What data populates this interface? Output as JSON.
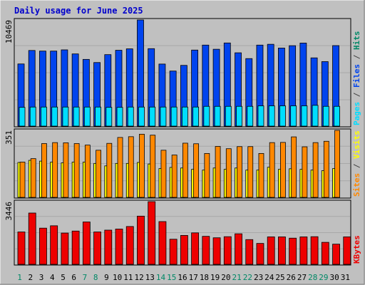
{
  "chart_data": {
    "type": "bar",
    "title": "Daily usage for June 2025",
    "days": [
      "1",
      "2",
      "3",
      "4",
      "5",
      "6",
      "7",
      "8",
      "9",
      "10",
      "11",
      "12",
      "13",
      "14",
      "15",
      "16",
      "17",
      "18",
      "19",
      "20",
      "21",
      "22",
      "23",
      "24",
      "25",
      "26",
      "27",
      "28",
      "29",
      "30",
      "31"
    ],
    "weekend_days": [
      "1",
      "7",
      "8",
      "14",
      "15",
      "21",
      "22",
      "28",
      "29"
    ],
    "panels": [
      {
        "id": "hits-files-pages",
        "ymax": 10469,
        "ymax_label": "10469",
        "side_labels": [
          {
            "text": "Pages",
            "color": "#00ddff"
          },
          {
            "text": " / ",
            "color": "#444444"
          },
          {
            "text": "Files",
            "color": "#0044ee"
          },
          {
            "text": " / ",
            "color": "#444444"
          },
          {
            "text": "Hits",
            "color": "#008866"
          }
        ],
        "series": [
          {
            "key": "hits",
            "color": "#008866",
            "values": [
              6130,
              7460,
              7400,
              7400,
              7520,
              7120,
              6580,
              6270,
              7050,
              7480,
              7620,
              10469,
              7640,
              6120,
              5430,
              5990,
              7500,
              7990,
              7580,
              8200,
              7230,
              6660,
              7990,
              8070,
              7700,
              7930,
              8190,
              6730,
              6360,
              7940
            ]
          },
          {
            "key": "files",
            "color": "#0044ee",
            "values": [
              6130,
              7460,
              7400,
              7400,
              7520,
              7120,
              6580,
              6270,
              7050,
              7480,
              7620,
              10469,
              7640,
              6120,
              5430,
              5990,
              7500,
              7990,
              7580,
              8200,
              7230,
              6660,
              7990,
              8070,
              7700,
              7930,
              8190,
              6730,
              6360,
              7940
            ]
          },
          {
            "key": "pages",
            "color": "#00ddff",
            "values": [
              1850,
              1880,
              1880,
              1880,
              1880,
              1880,
              1880,
              1880,
              1850,
              1850,
              1880,
              1880,
              1880,
              1880,
              1880,
              1880,
              1880,
              1950,
              1950,
              1950,
              1950,
              1950,
              2000,
              2000,
              2000,
              2000,
              2000,
              2050,
              1950,
              1950
            ]
          }
        ]
      },
      {
        "id": "visits-sites",
        "ymax": 351,
        "ymax_label": "351",
        "side_labels": [
          {
            "text": "Sites",
            "color": "#ff8800"
          },
          {
            "text": " / ",
            "color": "#444444"
          },
          {
            "text": "Visits",
            "color": "#ffff00"
          }
        ],
        "series": [
          {
            "key": "visits",
            "color": "#ffff00",
            "values": [
              183,
              194,
              190,
              185,
              181,
              185,
              185,
              178,
              165,
              178,
              178,
              183,
              175,
              151,
              157,
              154,
              147,
              143,
              154,
              147,
              154,
              143,
              143,
              158,
              147,
              150,
              147,
              143,
              140,
              151
            ]
          },
          {
            "key": "sites",
            "color": "#ff8800",
            "values": [
              185,
              203,
              282,
              287,
              286,
              282,
              274,
              247,
              283,
              314,
              318,
              331,
              326,
              247,
              222,
              284,
              281,
              230,
              267,
              255,
              266,
              266,
              230,
              287,
              288,
              317,
              265,
              287,
              294,
              351
            ]
          }
        ]
      },
      {
        "id": "kbytes",
        "ymax": 3446,
        "ymax_label": "3446",
        "side_labels": [
          {
            "text": "KBytes",
            "color": "#ee0000"
          }
        ],
        "series": [
          {
            "key": "kbytes",
            "color": "#ee0000",
            "values": [
              1780,
              2820,
              1990,
              2120,
              1720,
              1830,
              2330,
              1780,
              1880,
              1940,
              2080,
              2650,
              3446,
              2350,
              1380,
              1590,
              1730,
              1540,
              1460,
              1520,
              1680,
              1360,
              1150,
              1510,
              1510,
              1440,
              1510,
              1520,
              1210,
              1110,
              1510
            ]
          }
        ]
      }
    ]
  }
}
